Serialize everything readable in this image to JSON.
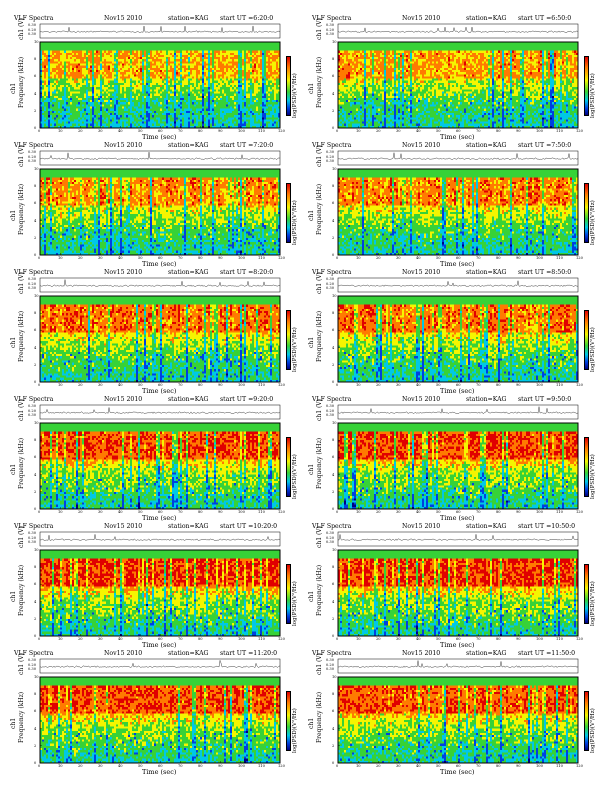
{
  "chart_data": {
    "type": "heatmap",
    "common": {
      "title": "VLF Spectra",
      "date": "Nov15 2010",
      "station": "station=KAG",
      "xlabel": "Time  (sec)",
      "ylabel_top": "ch1 (V)",
      "ylabel_main": "Frequency  (kHz)",
      "ylabel_main_prefix": "ch1",
      "colorbar_label": "log(PSD)(V²/Hz)",
      "xlim": [
        0,
        120
      ],
      "ylim_freq_khz": [
        0,
        10
      ],
      "ylim_waveform_v": [
        0.2,
        0.4
      ],
      "x_ticks": [
        "0",
        "10",
        "20",
        "30",
        "40",
        "50",
        "60",
        "70",
        "80",
        "90",
        "100",
        "110",
        "120"
      ],
      "freq_ticks": [
        "0",
        "2",
        "4",
        "6",
        "8",
        "10"
      ],
      "waveform_ticks": [
        "0.30",
        "0.20",
        "0.30"
      ],
      "colorbar_colors": [
        "#000080",
        "#0040e0",
        "#00c8e6",
        "#37d237",
        "#f5f500",
        "#ff7a00",
        "#e00000"
      ]
    },
    "panels": [
      {
        "start_ut": "start UT =6:20:0",
        "red_intensity": 0.4
      },
      {
        "start_ut": "start UT =6:50:0",
        "red_intensity": 0.42
      },
      {
        "start_ut": "start UT =7:20:0",
        "red_intensity": 0.5
      },
      {
        "start_ut": "start UT =7:50:0",
        "red_intensity": 0.52
      },
      {
        "start_ut": "start UT =8:20:0",
        "red_intensity": 0.56
      },
      {
        "start_ut": "start UT =8:50:0",
        "red_intensity": 0.58
      },
      {
        "start_ut": "start UT =9:20:0",
        "red_intensity": 0.72
      },
      {
        "start_ut": "start UT =9:50:0",
        "red_intensity": 0.74
      },
      {
        "start_ut": "start UT =10:20:0",
        "red_intensity": 0.8
      },
      {
        "start_ut": "start UT =10:50:0",
        "red_intensity": 0.78
      },
      {
        "start_ut": "start UT =11:20:0",
        "red_intensity": 0.7
      },
      {
        "start_ut": "start UT =11:50:0",
        "red_intensity": 0.66
      }
    ]
  }
}
